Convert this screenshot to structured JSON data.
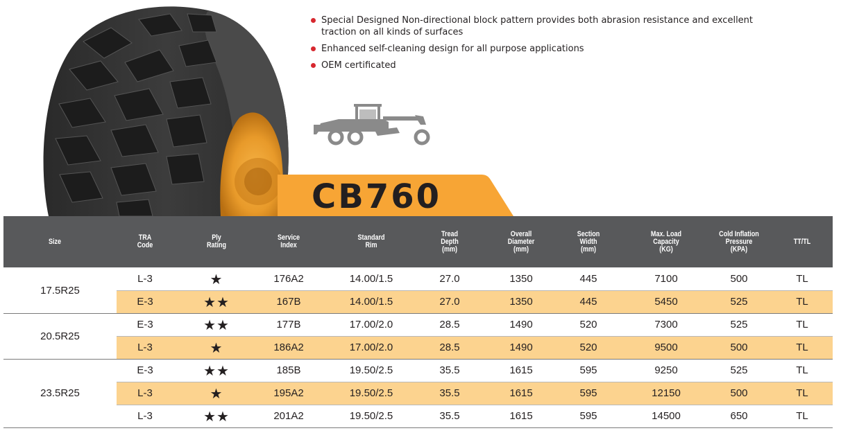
{
  "product": {
    "model": "CB760",
    "features": [
      "Special Designed Non-directional block pattern provides both abrasion resistance and excellent traction on all kinds of surfaces",
      "Enhanced self-cleaning design for all purpose applications",
      "OEM certificated"
    ],
    "application_icon": "motor-grader-icon",
    "accent_color": "#f7a535",
    "bullet_color": "#d7282f"
  },
  "table": {
    "headers": {
      "size": "Size",
      "tra": "TRA\nCode",
      "ply": "Ply\nRating",
      "service": "Service\nIndex",
      "rim": "Standard\nRim",
      "tread": "Tread\nDepth\n(mm)",
      "diameter": "Overall\nDiameter\n(mm)",
      "width": "Section\nWidth\n(mm)",
      "load": "Max. Load\nCapacity\n(KG)",
      "pressure": "Cold Inflation\nPressure\n(KPA)",
      "tt": "TT/TL"
    },
    "groups": [
      {
        "size": "17.5R25",
        "rows": [
          {
            "tra": "L-3",
            "ply": "★",
            "service": "176A2",
            "rim": "14.00/1.5",
            "tread": "27.0",
            "diameter": "1350",
            "width": "445",
            "load": "7100",
            "pressure": "500",
            "tt": "TL"
          },
          {
            "tra": "E-3",
            "ply": "★★",
            "service": "167B",
            "rim": "14.00/1.5",
            "tread": "27.0",
            "diameter": "1350",
            "width": "445",
            "load": "5450",
            "pressure": "525",
            "tt": "TL"
          }
        ]
      },
      {
        "size": "20.5R25",
        "rows": [
          {
            "tra": "E-3",
            "ply": "★★",
            "service": "177B",
            "rim": "17.00/2.0",
            "tread": "28.5",
            "diameter": "1490",
            "width": "520",
            "load": "7300",
            "pressure": "525",
            "tt": "TL"
          },
          {
            "tra": "L-3",
            "ply": "★",
            "service": "186A2",
            "rim": "17.00/2.0",
            "tread": "28.5",
            "diameter": "1490",
            "width": "520",
            "load": "9500",
            "pressure": "500",
            "tt": "TL"
          }
        ]
      },
      {
        "size": "23.5R25",
        "rows": [
          {
            "tra": "E-3",
            "ply": "★★",
            "service": "185B",
            "rim": "19.50/2.5",
            "tread": "35.5",
            "diameter": "1615",
            "width": "595",
            "load": "9250",
            "pressure": "525",
            "tt": "TL"
          },
          {
            "tra": "L-3",
            "ply": "★",
            "service": "195A2",
            "rim": "19.50/2.5",
            "tread": "35.5",
            "diameter": "1615",
            "width": "595",
            "load": "12150",
            "pressure": "500",
            "tt": "TL"
          },
          {
            "tra": "L-3",
            "ply": "★★",
            "service": "201A2",
            "rim": "19.50/2.5",
            "tread": "35.5",
            "diameter": "1615",
            "width": "595",
            "load": "14500",
            "pressure": "650",
            "tt": "TL"
          }
        ]
      }
    ]
  }
}
